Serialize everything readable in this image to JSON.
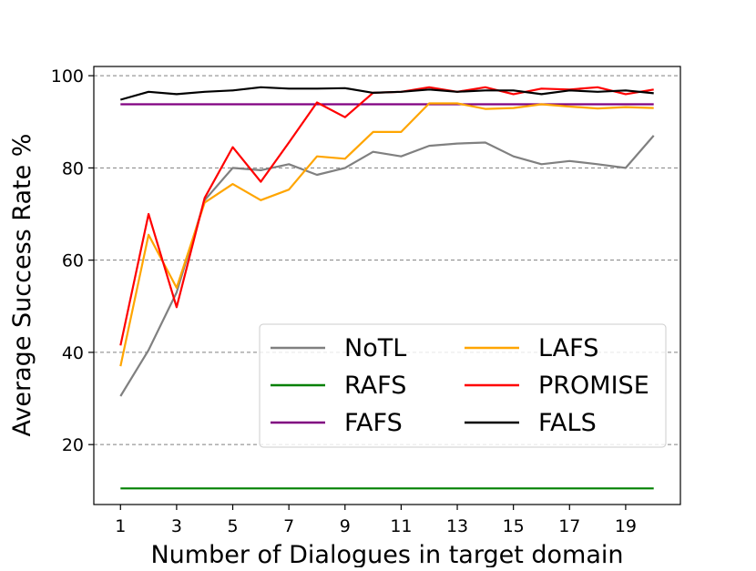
{
  "chart_data": {
    "type": "line",
    "title": "",
    "xlabel": "Number of Dialogues in target domain",
    "ylabel": "Average Success Rate %",
    "xlim": [
      0.05,
      20.95
    ],
    "ylim": [
      7,
      102
    ],
    "xticks": [
      1,
      3,
      5,
      7,
      9,
      11,
      13,
      15,
      17,
      19
    ],
    "yticks": [
      20,
      40,
      60,
      80,
      100
    ],
    "grid": "horizontal-dashed",
    "legend_placement": "lower-right",
    "legend_columns": 2,
    "x": [
      1,
      2,
      3,
      4,
      5,
      6,
      7,
      8,
      9,
      10,
      11,
      12,
      13,
      14,
      15,
      16,
      17,
      18,
      19,
      20
    ],
    "series": [
      {
        "name": "NoTL",
        "color": "#808080",
        "values": [
          30.5,
          40.5,
          53,
          73,
          80,
          79.5,
          80.8,
          78.5,
          80,
          83.5,
          82.5,
          84.8,
          85.3,
          85.5,
          82.5,
          80.8,
          81.5,
          80.8,
          80,
          87
        ]
      },
      {
        "name": "RAFS",
        "color": "#008000",
        "values": [
          10.5,
          10.5,
          10.5,
          10.5,
          10.5,
          10.5,
          10.5,
          10.5,
          10.5,
          10.5,
          10.5,
          10.5,
          10.5,
          10.5,
          10.5,
          10.5,
          10.5,
          10.5,
          10.5,
          10.5
        ]
      },
      {
        "name": "FAFS",
        "color": "#800080",
        "values": [
          93.8,
          93.8,
          93.8,
          93.8,
          93.8,
          93.8,
          93.8,
          93.8,
          93.8,
          93.8,
          93.8,
          93.8,
          93.8,
          93.8,
          93.8,
          93.8,
          93.8,
          93.8,
          93.8,
          93.8
        ]
      },
      {
        "name": "LAFS",
        "color": "#ffa500",
        "values": [
          37,
          65.5,
          54,
          72.5,
          76.5,
          73,
          75.3,
          82.5,
          82,
          87.8,
          87.8,
          94,
          94,
          92.8,
          93,
          93.8,
          93.3,
          92.9,
          93.2,
          93
        ]
      },
      {
        "name": "PROMISE",
        "color": "#ff0000",
        "values": [
          41.5,
          70,
          49.8,
          73.5,
          84.5,
          77,
          85.5,
          94.2,
          91,
          96.3,
          96.5,
          97.5,
          96.5,
          97.5,
          96,
          97.2,
          97,
          97.5,
          96,
          97
        ]
      },
      {
        "name": "FALS",
        "color": "#000000",
        "values": [
          94.8,
          96.5,
          96,
          96.5,
          96.8,
          97.5,
          97.2,
          97.2,
          97.3,
          96.3,
          96.5,
          97,
          96.5,
          96.8,
          96.8,
          96,
          96.8,
          96.5,
          96.8,
          96.2
        ]
      }
    ]
  }
}
